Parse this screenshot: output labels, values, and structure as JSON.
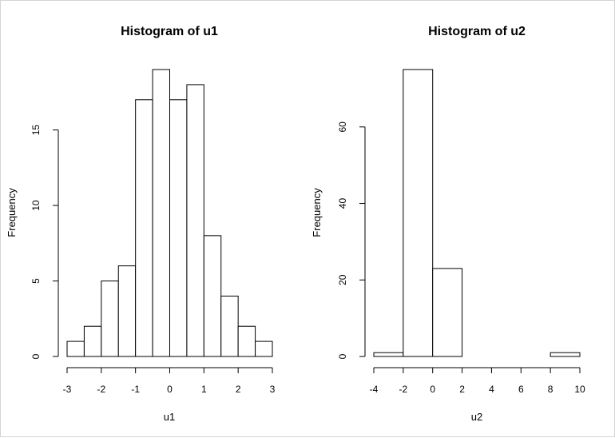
{
  "chart_data": [
    {
      "type": "bar",
      "title": "Histogram of u1",
      "xlabel": "u1",
      "ylabel": "Frequency",
      "bin_edges": [
        -3,
        -2.5,
        -2,
        -1.5,
        -1,
        -0.5,
        0,
        0.5,
        1,
        1.5,
        2,
        2.5,
        3
      ],
      "values": [
        1,
        2,
        5,
        6,
        17,
        19,
        17,
        18,
        8,
        4,
        2,
        1
      ],
      "xlim": [
        -3,
        3
      ],
      "ylim": [
        0,
        19
      ],
      "x_ticks": [
        -3,
        -2,
        -1,
        0,
        1,
        2,
        3
      ],
      "y_ticks": [
        0,
        5,
        10,
        15
      ],
      "grid": false,
      "legend": "none"
    },
    {
      "type": "bar",
      "title": "Histogram of u2",
      "xlabel": "u2",
      "ylabel": "Frequency",
      "bin_edges": [
        -4,
        -2,
        0,
        2,
        4,
        6,
        8,
        10
      ],
      "values": [
        1,
        75,
        23,
        0,
        0,
        0,
        1
      ],
      "xlim": [
        -4,
        10
      ],
      "ylim": [
        0,
        75
      ],
      "x_ticks": [
        -4,
        -2,
        0,
        2,
        4,
        6,
        8,
        10
      ],
      "y_ticks": [
        0,
        20,
        40,
        60
      ],
      "grid": false,
      "legend": "none"
    }
  ]
}
